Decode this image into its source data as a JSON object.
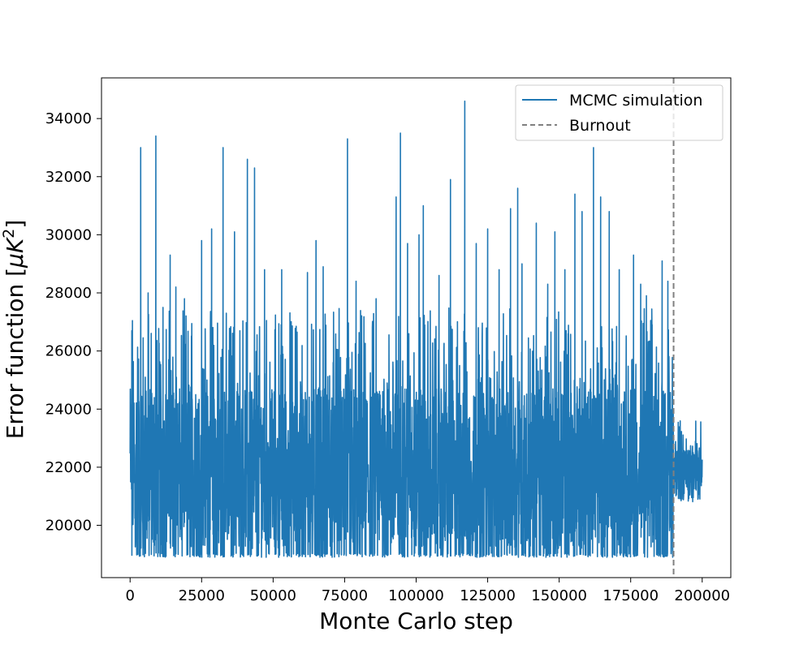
{
  "chart_data": {
    "type": "line",
    "title": "",
    "xlabel": "Monte Carlo step",
    "ylabel_main": "Error function [",
    "ylabel_sym": "μK",
    "ylabel_sup": "2",
    "ylabel_end": "]",
    "xlim": [
      -10000,
      210000
    ],
    "ylim": [
      18200,
      35400
    ],
    "xticks": [
      0,
      25000,
      50000,
      75000,
      100000,
      125000,
      150000,
      175000,
      200000
    ],
    "yticks": [
      20000,
      22000,
      24000,
      26000,
      28000,
      30000,
      32000,
      34000
    ],
    "grid": false,
    "legend_position": "top-right",
    "series": [
      {
        "name": "MCMC simulation",
        "color": "#1f77b4",
        "kind": "noisy-trace",
        "x_start": 0,
        "x_end": 200000,
        "burnin_band": [
          18900,
          27500
        ],
        "post_burnout_band": [
          20800,
          23600
        ],
        "spikes": [
          [
            600,
            26700
          ],
          [
            3700,
            33000
          ],
          [
            6300,
            28000
          ],
          [
            9000,
            33400
          ],
          [
            11500,
            27500
          ],
          [
            14000,
            29300
          ],
          [
            16000,
            28200
          ],
          [
            19000,
            27800
          ],
          [
            25000,
            29800
          ],
          [
            28500,
            30200
          ],
          [
            32500,
            33000
          ],
          [
            36500,
            30100
          ],
          [
            41000,
            32600
          ],
          [
            43500,
            32300
          ],
          [
            47000,
            28800
          ],
          [
            53000,
            28800
          ],
          [
            62000,
            28700
          ],
          [
            65000,
            29800
          ],
          [
            67500,
            28900
          ],
          [
            76000,
            33300
          ],
          [
            79000,
            28400
          ],
          [
            86000,
            27800
          ],
          [
            93000,
            31300
          ],
          [
            94500,
            33500
          ],
          [
            97000,
            29700
          ],
          [
            101000,
            30000
          ],
          [
            102500,
            31000
          ],
          [
            108000,
            28600
          ],
          [
            112000,
            31900
          ],
          [
            117000,
            34600
          ],
          [
            121000,
            29700
          ],
          [
            125000,
            30200
          ],
          [
            129000,
            28800
          ],
          [
            133000,
            30900
          ],
          [
            135500,
            31600
          ],
          [
            137000,
            29000
          ],
          [
            142000,
            30400
          ],
          [
            146000,
            28300
          ],
          [
            148500,
            30100
          ],
          [
            152000,
            28800
          ],
          [
            155500,
            31400
          ],
          [
            158000,
            30800
          ],
          [
            162000,
            33000
          ],
          [
            164500,
            31300
          ],
          [
            167500,
            30800
          ],
          [
            171000,
            28800
          ],
          [
            176000,
            29300
          ],
          [
            178500,
            28300
          ],
          [
            180500,
            27900
          ],
          [
            186000,
            29100
          ],
          [
            188000,
            28400
          ],
          [
            190000,
            27600
          ]
        ]
      },
      {
        "name": "Burnout",
        "color": "#808080",
        "kind": "vline",
        "x": 190000
      }
    ]
  }
}
